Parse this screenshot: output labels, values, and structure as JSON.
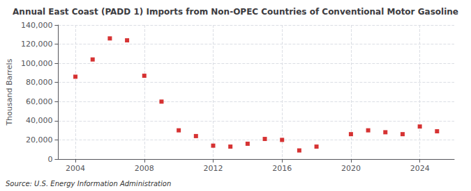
{
  "chart_data": {
    "type": "scatter",
    "title": "Annual East Coast (PADD 1) Imports from Non-OPEC Countries of Conventional Motor Gasoline",
    "ylabel": "Thousand Barrels",
    "source": "Source: U.S. Energy Information Administration",
    "x": [
      2004,
      2005,
      2006,
      2007,
      2008,
      2009,
      2010,
      2011,
      2012,
      2013,
      2014,
      2015,
      2016,
      2017,
      2018,
      2020,
      2021,
      2022,
      2023,
      2024,
      2025
    ],
    "values": [
      86000,
      104000,
      126000,
      124000,
      87000,
      60000,
      30000,
      24000,
      14000,
      13000,
      16000,
      21000,
      20000,
      9000,
      13000,
      26000,
      30000,
      28000,
      26000,
      34000,
      29000
    ],
    "color": "#cc0000",
    "marker": "square",
    "xlim": [
      2003.0,
      2026.0
    ],
    "xticks": [
      2004,
      2008,
      2012,
      2016,
      2020,
      2024
    ],
    "ylim": [
      0,
      140000
    ],
    "yticks": [
      0,
      {
        "value": 20000,
        "label": "20,000"
      },
      {
        "value": 40000,
        "label": "40,000"
      },
      {
        "value": 60000,
        "label": "60,000"
      },
      {
        "value": 80000,
        "label": "80,000"
      },
      {
        "value": 100000,
        "label": "100,000"
      },
      {
        "value": 120000,
        "label": "120,000"
      },
      {
        "value": 140000,
        "label": "140,000"
      }
    ],
    "grid": true
  }
}
